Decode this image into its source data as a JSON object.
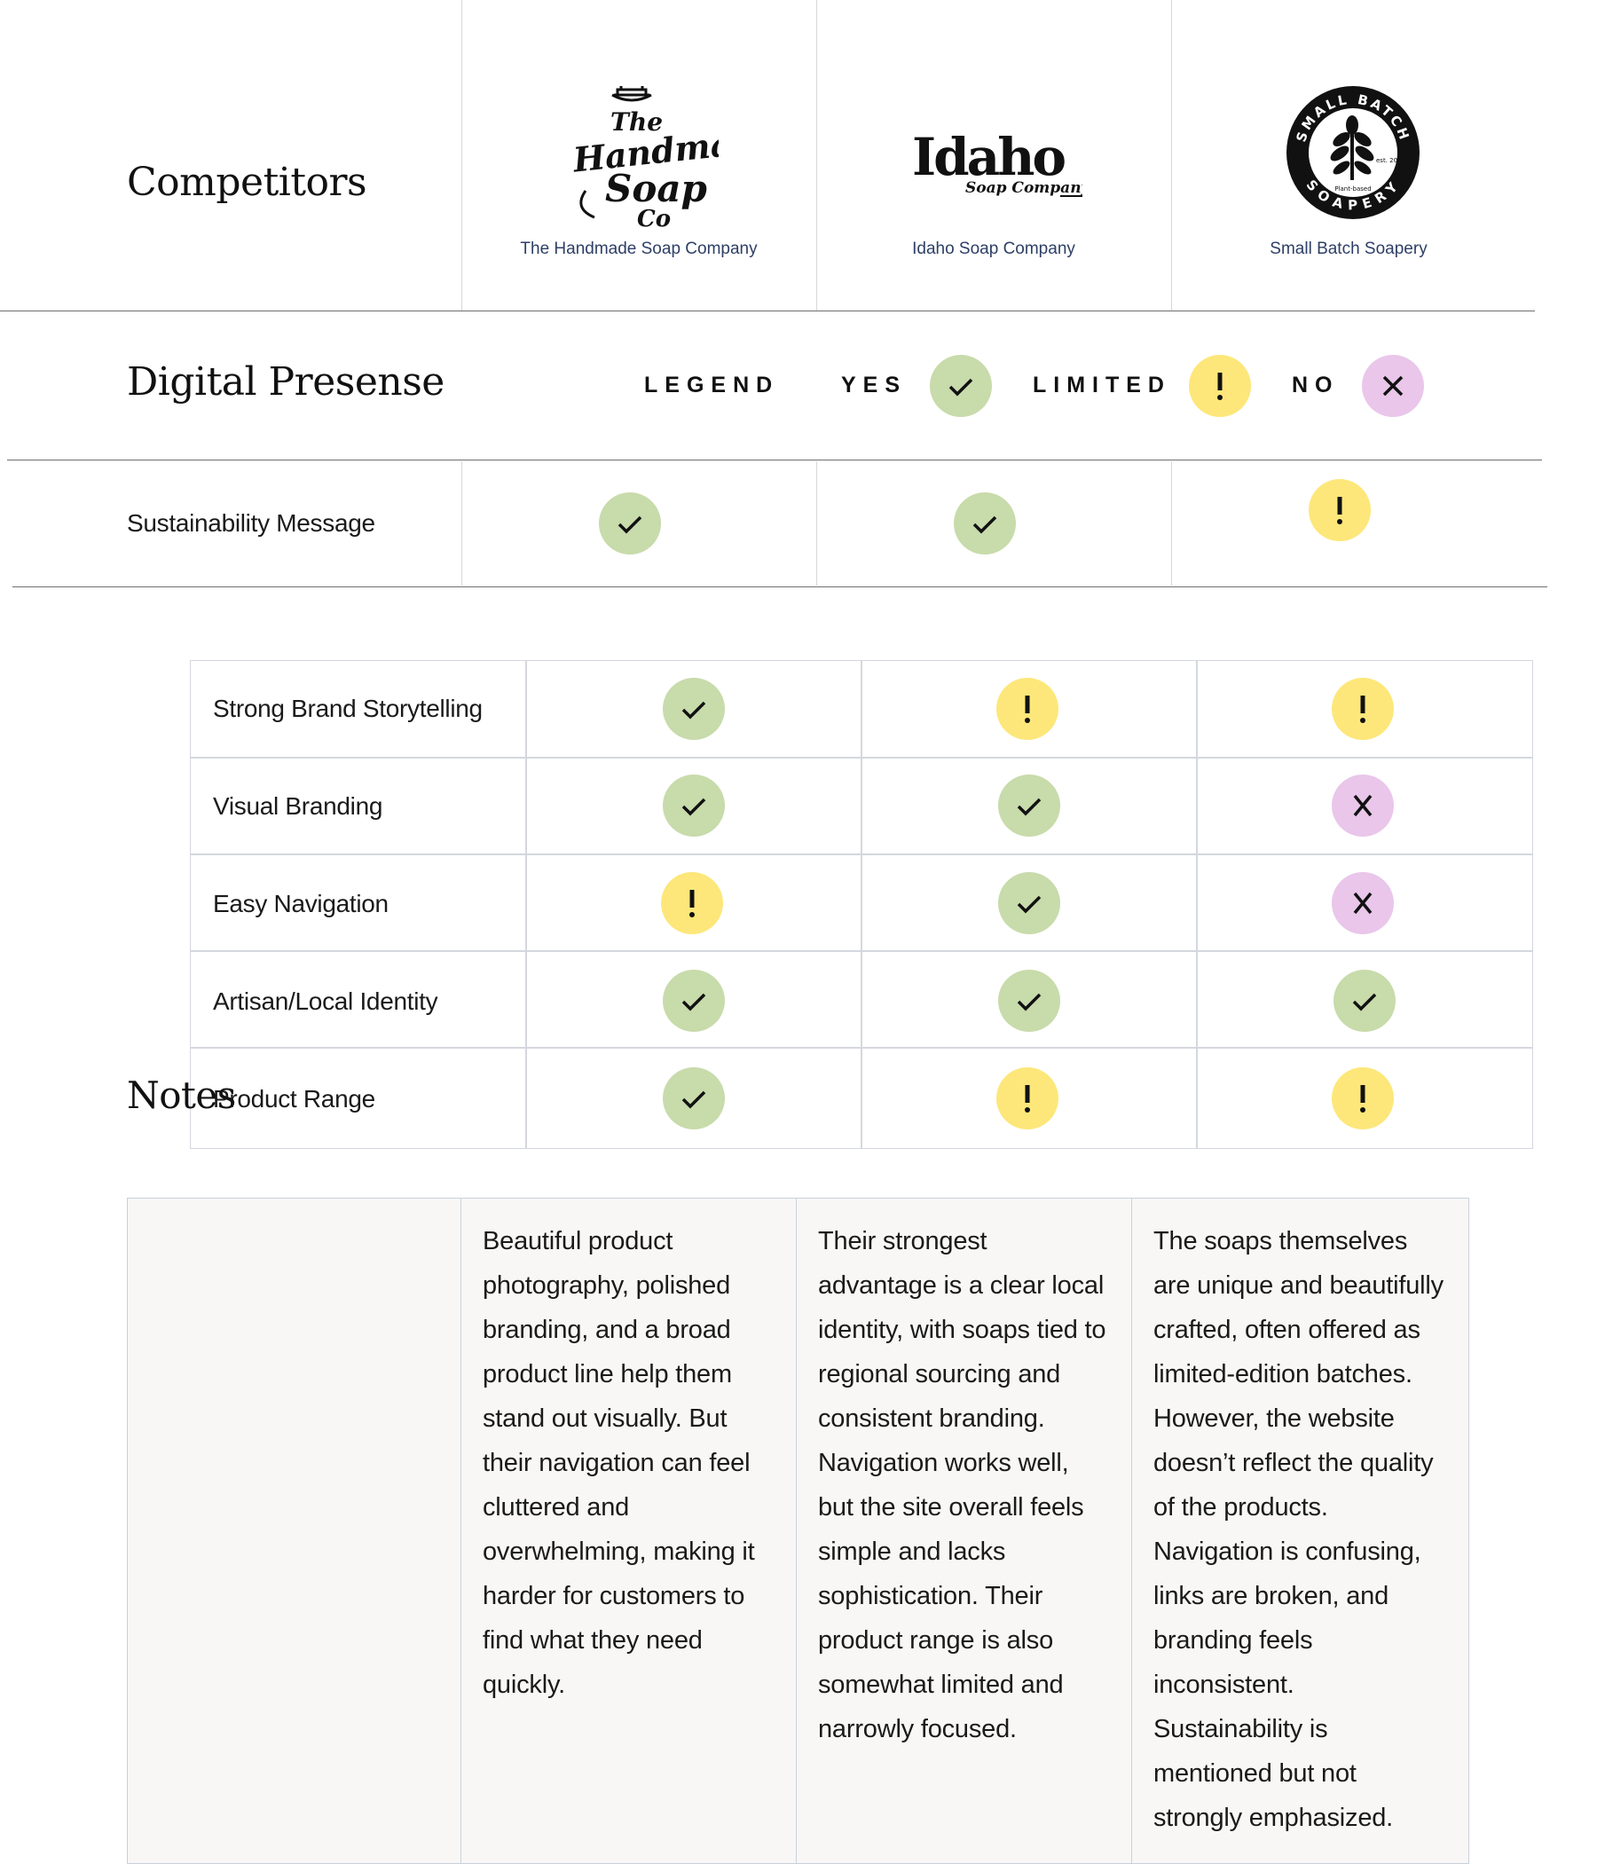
{
  "header": {
    "competitors_title": "Competitors",
    "digital_title": "Digital Presense"
  },
  "competitors": [
    {
      "name": "The Handmade Soap Company",
      "logo_text": [
        "The",
        "Handmade",
        "Soap",
        "Co"
      ]
    },
    {
      "name": "Idaho Soap Company",
      "logo_text": [
        "Idaho",
        "Soap Company"
      ]
    },
    {
      "name": "Small Batch Soapery",
      "logo_text": [
        "SMALL BATCH",
        "SOAPERY",
        "est. 2021",
        "Plant-based"
      ]
    }
  ],
  "legend": {
    "label": "LEGEND",
    "yes": "YES",
    "limited": "LIMITED",
    "no": "NO"
  },
  "colors": {
    "yes": "#c8dbab",
    "limited": "#fde77a",
    "no": "#e9c6ea"
  },
  "sustainability": {
    "label": "Sustainability Message",
    "values": [
      "yes",
      "yes",
      "limited"
    ]
  },
  "criteria": [
    {
      "label": "Strong Brand Storytelling",
      "values": [
        "yes",
        "limited",
        "limited"
      ]
    },
    {
      "label": "Visual Branding",
      "values": [
        "yes",
        "yes",
        "no"
      ]
    },
    {
      "label": "Easy Navigation",
      "values": [
        "limited",
        "yes",
        "no"
      ]
    },
    {
      "label": "Artisan/Local Identity",
      "values": [
        "yes",
        "yes",
        "yes"
      ]
    },
    {
      "label": "Product Range",
      "values": [
        "yes",
        "limited",
        "limited"
      ]
    }
  ],
  "notes": {
    "title": "Notes",
    "entries": [
      "Beautiful product photography, polished branding, and a broad product line help them stand out visually. But their navigation can feel cluttered and overwhelming, making it harder for customers to find what they need quickly.",
      "Their strongest advantage is a clear local identity, with soaps tied to regional sourcing and consistent branding. Navigation works well, but the site overall feels simple and lacks sophistication. Their product range is also somewhat limited and narrowly focused.",
      "The soaps themselves are unique and beautifully crafted, often offered as limited-edition batches. However, the website doesn’t reflect the quality of the products. Navigation is confusing, links are broken, and branding feels inconsistent. Sustainability is mentioned but not strongly emphasized."
    ]
  }
}
